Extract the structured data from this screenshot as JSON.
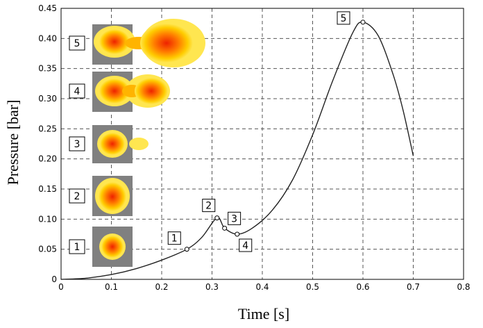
{
  "chart_data": {
    "type": "line",
    "xlabel": "Time [s]",
    "ylabel": "Pressure [bar]",
    "xlim": [
      0,
      0.8
    ],
    "ylim": [
      0,
      0.45
    ],
    "grid": true,
    "x_ticks": [
      "0",
      "0.1",
      "0.2",
      "0.3",
      "0.4",
      "0.5",
      "0.6",
      "0.7",
      "0.8"
    ],
    "y_ticks": [
      "0",
      "0.05",
      "0.10",
      "0.15",
      "0.20",
      "0.25",
      "0.30",
      "0.35",
      "0.40",
      "0.45"
    ],
    "series": [
      {
        "name": "pressure",
        "x": [
          0,
          0.05,
          0.1,
          0.15,
          0.2,
          0.25,
          0.28,
          0.31,
          0.325,
          0.35,
          0.38,
          0.42,
          0.46,
          0.5,
          0.54,
          0.58,
          0.6,
          0.63,
          0.66,
          0.68,
          0.7
        ],
        "y": [
          0,
          0.002,
          0.008,
          0.018,
          0.032,
          0.05,
          0.07,
          0.102,
          0.085,
          0.075,
          0.085,
          0.115,
          0.165,
          0.24,
          0.33,
          0.41,
          0.427,
          0.405,
          0.34,
          0.28,
          0.205
        ]
      }
    ],
    "marked_points": [
      {
        "label": "1",
        "x": 0.25,
        "y": 0.05
      },
      {
        "label": "2",
        "x": 0.31,
        "y": 0.102
      },
      {
        "label": "3",
        "x": 0.325,
        "y": 0.085
      },
      {
        "label": "4",
        "x": 0.35,
        "y": 0.075
      },
      {
        "label": "5",
        "x": 0.6,
        "y": 0.427
      }
    ],
    "inset_labels": [
      "5",
      "4",
      "3",
      "2",
      "1"
    ]
  }
}
